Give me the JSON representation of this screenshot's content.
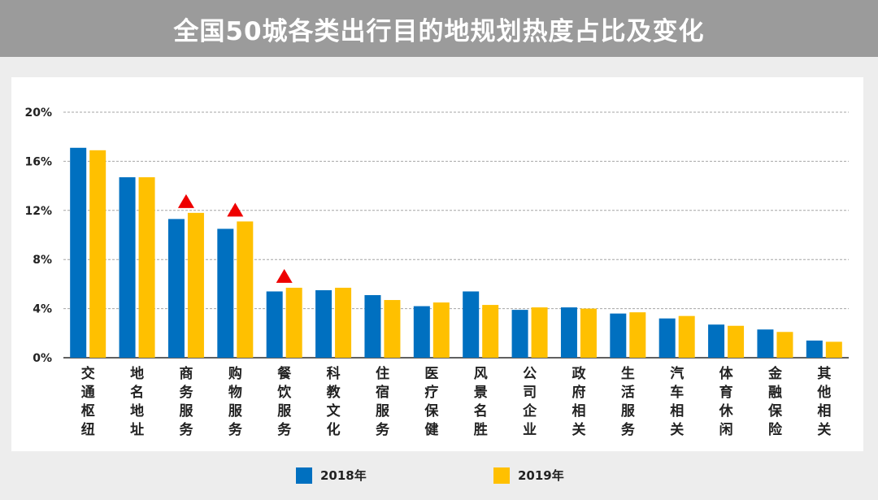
{
  "title": "全国50城各类出行目的地规划热度占比及变化",
  "colors": {
    "series_2018": "#0070c0",
    "series_2019": "#ffc000",
    "marker": "#ee0000",
    "grid": "#a6a6a6",
    "axis": "#000000"
  },
  "chart_data": {
    "type": "bar",
    "categories": [
      "交通枢纽",
      "地名地址",
      "商务服务",
      "购物服务",
      "餐饮服务",
      "科教文化",
      "住宿服务",
      "医疗保健",
      "风景名胜",
      "公司企业",
      "政府相关",
      "生活服务",
      "汽车相关",
      "体育休闲",
      "金融保险",
      "其他相关"
    ],
    "series": [
      {
        "name": "2018年",
        "values": [
          17.1,
          14.7,
          11.3,
          10.5,
          5.4,
          5.5,
          5.1,
          4.2,
          5.4,
          3.9,
          4.1,
          3.6,
          3.2,
          2.7,
          2.3,
          1.4
        ]
      },
      {
        "name": "2019年",
        "values": [
          16.9,
          14.7,
          11.8,
          11.1,
          5.7,
          5.7,
          4.7,
          4.5,
          4.3,
          4.1,
          4.0,
          3.7,
          3.4,
          2.6,
          2.1,
          1.3
        ]
      }
    ],
    "ylim": [
      0,
      20
    ],
    "yticks": [
      0,
      4,
      8,
      12,
      16,
      20
    ],
    "ytick_labels": [
      "0%",
      "4%",
      "8%",
      "12%",
      "16%",
      "20%"
    ],
    "grid": true,
    "legend_position": "bottom",
    "increase_markers": [
      "商务服务",
      "购物服务",
      "餐饮服务"
    ]
  }
}
